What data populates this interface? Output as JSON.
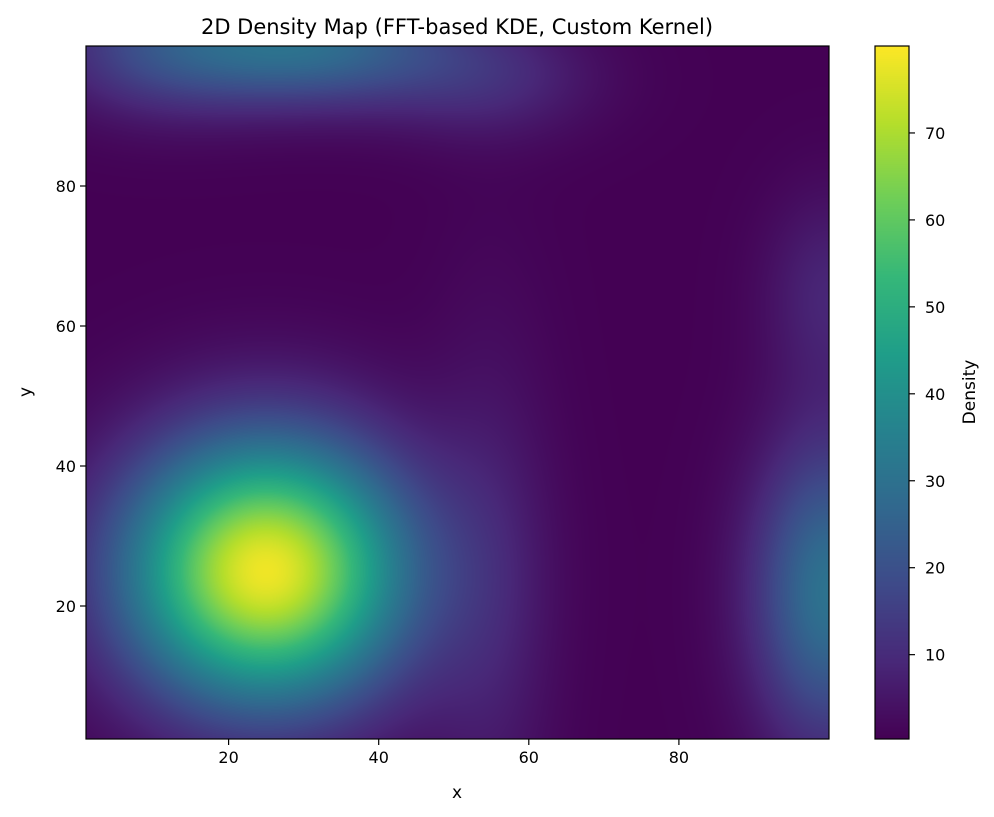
{
  "chart_data": {
    "type": "heatmap",
    "title": "2D Density Map (FFT-based KDE, Custom Kernel)",
    "xlabel": "x",
    "ylabel": "y",
    "xlim": [
      1,
      100
    ],
    "ylim": [
      1,
      100
    ],
    "x_ticks": [
      20,
      40,
      60,
      80
    ],
    "y_ticks": [
      20,
      40,
      60,
      80
    ],
    "colormap": "viridis",
    "colorbar": {
      "label": "Density",
      "range": [
        0.3,
        80
      ],
      "ticks": [
        10,
        20,
        30,
        40,
        50,
        60,
        70
      ]
    },
    "density_sources": [
      {
        "x": 25,
        "y": 25,
        "sx": 13,
        "sy": 13,
        "weight": 78
      },
      {
        "x": 30,
        "y": 100,
        "sx": 14,
        "sy": 6,
        "weight": 28
      },
      {
        "x": 10,
        "y": 100,
        "sx": 10,
        "sy": 7,
        "weight": 12
      },
      {
        "x": 55,
        "y": 95,
        "sx": 10,
        "sy": 6,
        "weight": 8
      },
      {
        "x": 100,
        "y": 22,
        "sx": 7,
        "sy": 15,
        "weight": 30
      },
      {
        "x": 55,
        "y": 20,
        "sx": 6,
        "sy": 28,
        "weight": 6
      },
      {
        "x": 100,
        "y": 65,
        "sx": 6,
        "sy": 10,
        "weight": 8
      }
    ],
    "colors": {
      "viridis": [
        "#440154",
        "#482878",
        "#3e4a89",
        "#31688e",
        "#26828e",
        "#1f9e89",
        "#35b779",
        "#6ece58",
        "#b5de2b",
        "#fde725"
      ]
    }
  }
}
